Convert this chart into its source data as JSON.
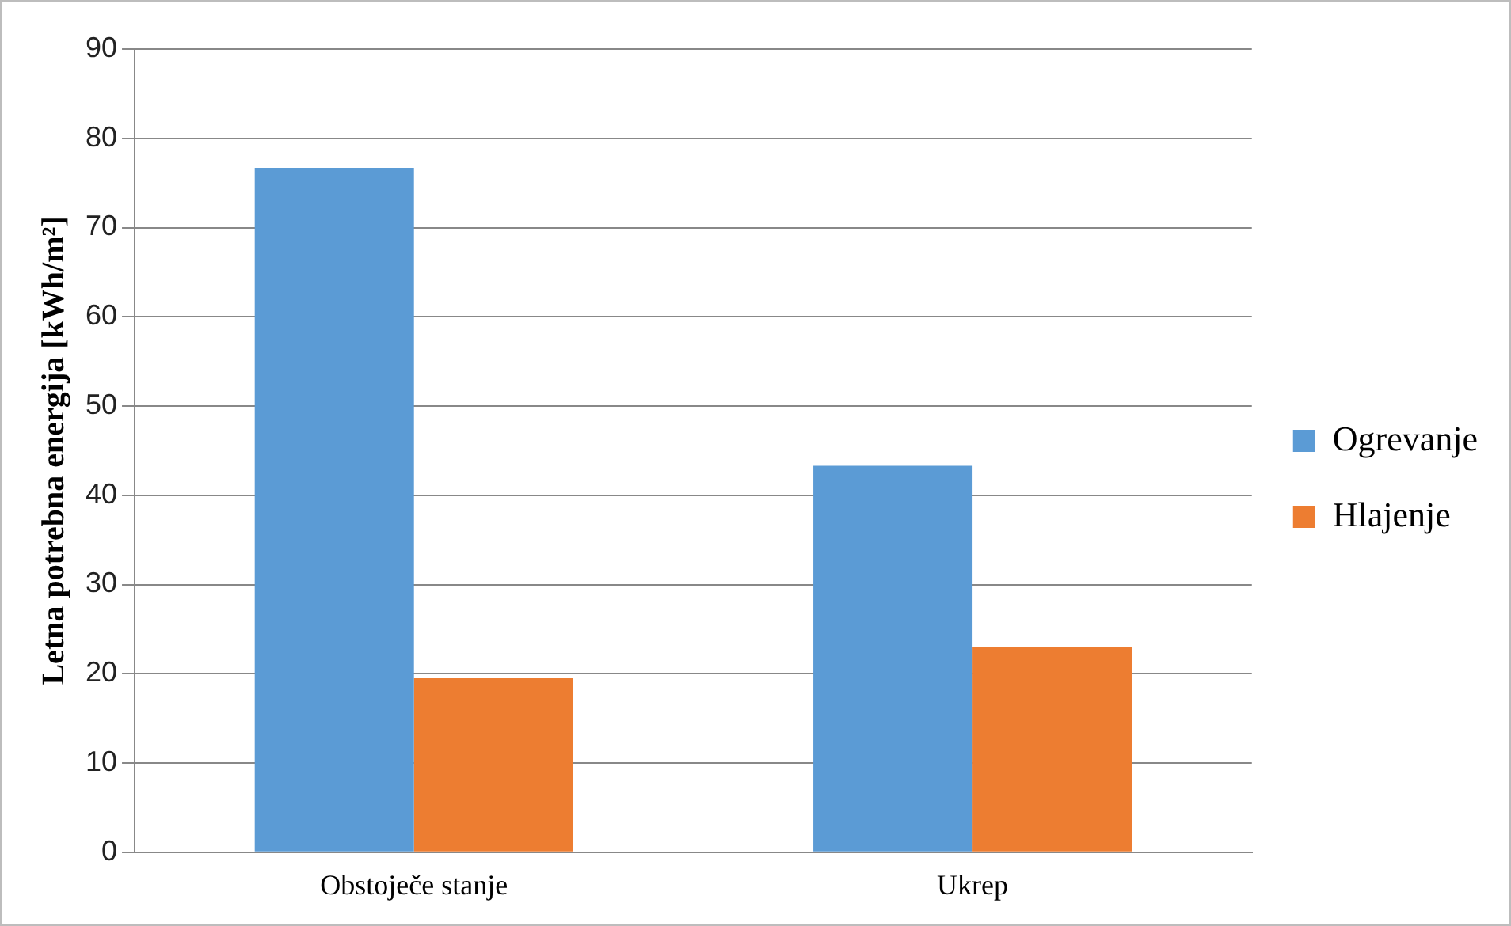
{
  "chart_data": {
    "type": "bar",
    "ylabel": "Letna potrebna energija [kWh/m²]",
    "categories": [
      "Obstoječe stanje",
      "Ukrep"
    ],
    "series": [
      {
        "name": "Ogrevanje",
        "color": "#5b9bd5",
        "values": [
          76.7,
          43.3
        ]
      },
      {
        "name": "Hlajenje",
        "color": "#ed7d31",
        "values": [
          19.5,
          23.0
        ]
      }
    ],
    "ylim": [
      0,
      90
    ],
    "yticks": [
      0,
      10,
      20,
      30,
      40,
      50,
      60,
      70,
      80,
      90
    ],
    "grid": "y",
    "legend": "right"
  }
}
